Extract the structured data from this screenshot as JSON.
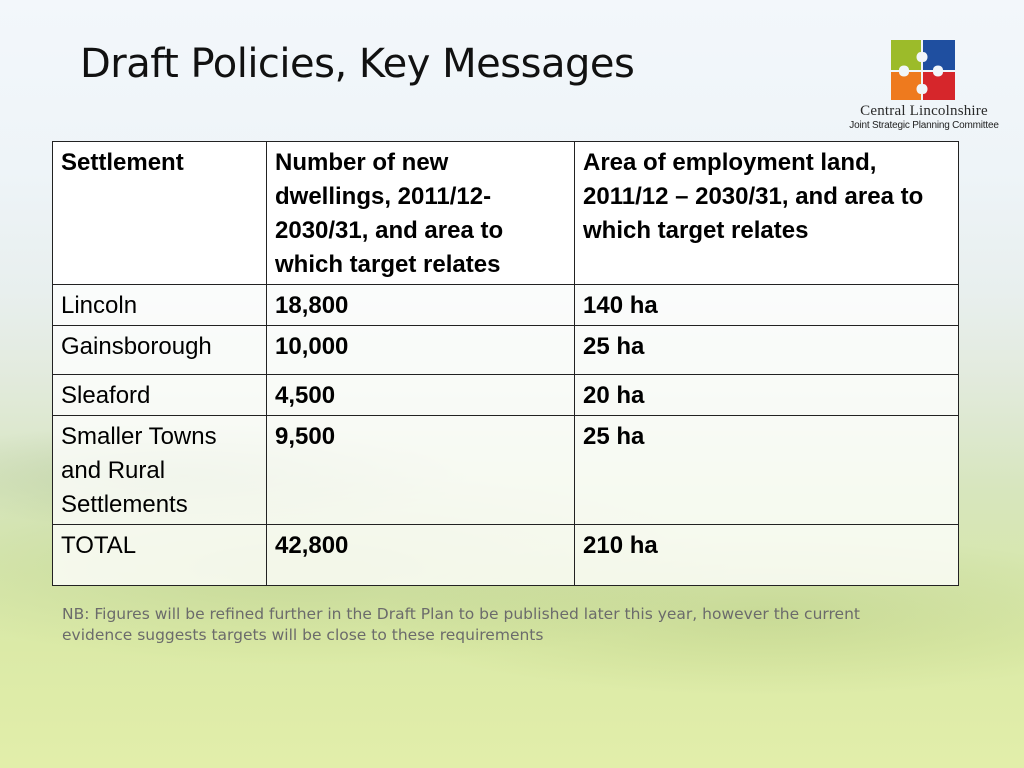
{
  "slide": {
    "title": "Draft Policies, Key Messages"
  },
  "logo": {
    "name": "Central Lincolnshire",
    "subtitle": "Joint Strategic Planning Committee",
    "colors": {
      "green": "#9cbb2a",
      "blue": "#1f4fa0",
      "orange": "#ee7a1e",
      "red": "#d6262b"
    }
  },
  "table": {
    "headers": [
      "Settlement",
      "Number of new dwellings, 2011/12-2030/31, and area to which target relates",
      "Area of employment land, 2011/12 – 2030/31, and area to which target relates"
    ],
    "rows": [
      {
        "settlement": "Lincoln",
        "dwellings": "18,800",
        "employment_land": "140 ha"
      },
      {
        "settlement": "Gainsborough",
        "dwellings": "10,000",
        "employment_land": "25 ha"
      },
      {
        "settlement": "Sleaford",
        "dwellings": "4,500",
        "employment_land": "20 ha"
      },
      {
        "settlement": "Smaller Towns and Rural Settlements",
        "dwellings": "9,500",
        "employment_land": "25 ha"
      },
      {
        "settlement": "TOTAL",
        "dwellings": "42,800",
        "employment_land": "210 ha"
      }
    ]
  },
  "note": "NB: Figures will be refined further in the Draft Plan to be published later this year, however the current evidence suggests targets will be close to these requirements"
}
